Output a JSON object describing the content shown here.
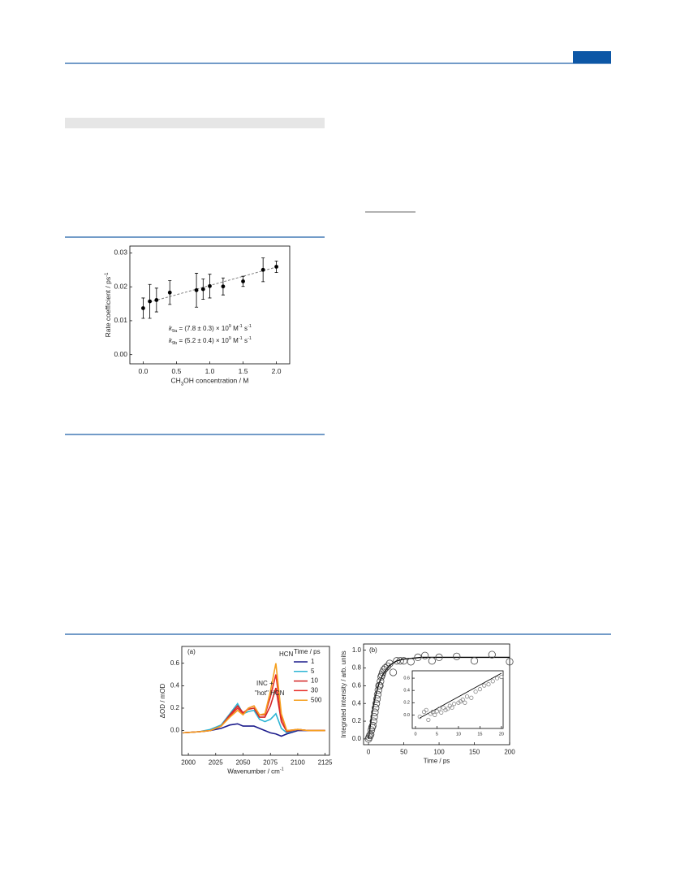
{
  "chart_data": [
    {
      "type": "scatter",
      "x": [
        0,
        0.1,
        0.2,
        0.4,
        0.8,
        0.9,
        1.0,
        1.2,
        1.5,
        1.8,
        2.0
      ],
      "values": [
        0.0137,
        0.0157,
        0.0161,
        0.0183,
        0.019,
        0.0193,
        0.0202,
        0.0201,
        0.0216,
        0.025,
        0.0259
      ],
      "errors": [
        0.003,
        0.005,
        0.0035,
        0.0035,
        0.005,
        0.003,
        0.0035,
        0.0025,
        0.0015,
        0.0035,
        0.0017
      ],
      "color": "#000000",
      "fit": {
        "x": [
          0.1,
          2.0
        ],
        "values": [
          0.0155,
          0.0258
        ],
        "color": "#808080"
      },
      "xlim": [
        -0.2,
        2.2
      ],
      "ylim": [
        -0.0027,
        0.032
      ],
      "xticks": [
        {
          "value": 0,
          "label": "0.0"
        },
        {
          "value": 0.5,
          "label": "0.5"
        },
        {
          "value": 1,
          "label": "1.0"
        },
        {
          "value": 1.5,
          "label": "1.5"
        },
        {
          "value": 2,
          "label": "2.0"
        }
      ],
      "yticks": [
        {
          "value": 0,
          "label": "0.00"
        },
        {
          "value": 0.01,
          "label": "0.01"
        },
        {
          "value": 0.02,
          "label": "0.02"
        },
        {
          "value": 0.03,
          "label": "0.03"
        }
      ],
      "xlabel": [
        {
          "text": "CH"
        },
        {
          "text": "3",
          "shift": "sub"
        },
        {
          "text": "OH concentration / M"
        }
      ],
      "ylabel": [
        {
          "text": "Rate coefficient / ps"
        },
        {
          "text": "-1",
          "shift": "super"
        }
      ],
      "annotations": [
        [
          {
            "text": "k",
            "italic": true
          },
          {
            "text": "9a",
            "shift": "sub"
          },
          {
            "text": " = (7.8 ± 0.3) × 10"
          },
          {
            "text": "9",
            "shift": "super"
          },
          {
            "text": " M"
          },
          {
            "text": "-1",
            "shift": "super"
          },
          {
            "text": " s"
          },
          {
            "text": "-1",
            "shift": "super"
          }
        ],
        [
          {
            "text": "k",
            "italic": true
          },
          {
            "text": "9b",
            "shift": "sub"
          },
          {
            "text": " = (5.2 ± 0.4) × 10"
          },
          {
            "text": "9",
            "shift": "super"
          },
          {
            "text": " M"
          },
          {
            "text": "-1",
            "shift": "super"
          },
          {
            "text": " s"
          },
          {
            "text": "-1",
            "shift": "super"
          }
        ]
      ]
    },
    {
      "type": "line",
      "x": [
        1995,
        2010,
        2020,
        2030,
        2038,
        2045,
        2050,
        2055,
        2060,
        2065,
        2070,
        2075,
        2080,
        2085,
        2090,
        2100,
        2110,
        2125
      ],
      "series": [
        {
          "name": "1",
          "color": "#1c1c8c",
          "values": [
            -0.02,
            -0.01,
            0.0,
            0.02,
            0.05,
            0.06,
            0.04,
            0.04,
            0.04,
            0.02,
            0.0,
            -0.02,
            -0.03,
            -0.05,
            -0.03,
            0.0,
            0.0,
            0.0
          ]
        },
        {
          "name": "5",
          "color": "#2cb4d4",
          "values": [
            -0.02,
            -0.01,
            0.01,
            0.05,
            0.15,
            0.24,
            0.15,
            0.17,
            0.18,
            0.1,
            0.08,
            0.1,
            0.15,
            0.02,
            -0.02,
            0.01,
            0.0,
            0.0
          ]
        },
        {
          "name": "10",
          "color": "#d42626",
          "values": [
            -0.02,
            -0.01,
            0.0,
            0.04,
            0.14,
            0.22,
            0.16,
            0.19,
            0.2,
            0.12,
            0.12,
            0.22,
            0.38,
            0.08,
            -0.01,
            0.01,
            0.0,
            0.0
          ]
        },
        {
          "name": "30",
          "color": "#e8302a",
          "values": [
            -0.02,
            -0.01,
            0.0,
            0.04,
            0.13,
            0.2,
            0.15,
            0.2,
            0.22,
            0.14,
            0.14,
            0.3,
            0.5,
            0.12,
            0.0,
            0.01,
            0.0,
            0.0
          ]
        },
        {
          "name": "500",
          "color": "#f5a020",
          "values": [
            -0.02,
            -0.01,
            0.0,
            0.04,
            0.12,
            0.18,
            0.14,
            0.2,
            0.22,
            0.14,
            0.15,
            0.35,
            0.6,
            0.15,
            0.0,
            0.01,
            0.0,
            0.0
          ]
        }
      ],
      "legend_title": "Time / ps",
      "xlim": [
        1994,
        2129
      ],
      "ylim": [
        -0.22,
        0.75
      ],
      "xticks": [
        2000,
        2025,
        2050,
        2075,
        2100,
        2125
      ],
      "yticks": [
        {
          "value": 0,
          "label": "0.0"
        },
        {
          "value": 0.2,
          "label": "0.2"
        },
        {
          "value": 0.4,
          "label": "0.4"
        },
        {
          "value": 0.6,
          "label": "0.6"
        }
      ],
      "xlabel": [
        {
          "text": "Wavenumber / cm"
        },
        {
          "text": "-1",
          "shift": "super"
        }
      ],
      "ylabel": [
        {
          "text": "ΔOD / mOD"
        }
      ],
      "annotations": [
        "(a)",
        "HCN",
        "INC +",
        "\"hot\" HCN"
      ]
    },
    {
      "type": "scatter",
      "x": [
        0,
        1,
        2,
        3,
        4,
        5,
        6,
        7,
        8,
        9,
        10,
        11,
        12,
        13,
        14,
        15,
        16,
        17,
        18,
        19,
        20,
        22,
        24,
        27,
        30,
        35,
        40,
        45,
        50,
        60,
        70,
        80,
        90,
        100,
        125,
        150,
        175,
        200
      ],
      "values": [
        0.0,
        0.02,
        0.04,
        0.05,
        0.1,
        0.13,
        0.15,
        0.2,
        0.25,
        0.3,
        0.35,
        0.4,
        0.45,
        0.5,
        0.55,
        0.6,
        0.6,
        0.65,
        0.7,
        0.72,
        0.75,
        0.78,
        0.8,
        0.82,
        0.85,
        0.75,
        0.88,
        0.88,
        0.88,
        0.87,
        0.92,
        0.94,
        0.88,
        0.92,
        0.93,
        0.88,
        0.95,
        0.87
      ],
      "color": "#444444",
      "fit": {
        "x": [
          0,
          5,
          10,
          15,
          20,
          25,
          30,
          40,
          50,
          75,
          100,
          150,
          200
        ],
        "values": [
          0,
          0.29,
          0.49,
          0.63,
          0.72,
          0.78,
          0.83,
          0.88,
          0.9,
          0.92,
          0.92,
          0.92,
          0.92
        ],
        "color": "#000000"
      },
      "xlim": [
        -7,
        200
      ],
      "ylim": [
        -0.065,
        1.07
      ],
      "xticks": [
        0,
        50,
        100,
        150,
        200
      ],
      "yticks": [
        {
          "value": 0,
          "label": "0.0"
        },
        {
          "value": 0.2,
          "label": "0.2"
        },
        {
          "value": 0.4,
          "label": "0.4"
        },
        {
          "value": 0.6,
          "label": "0.6"
        },
        {
          "value": 0.8,
          "label": "0.8"
        },
        {
          "value": 1,
          "label": "1.0"
        }
      ],
      "xlabel": [
        {
          "text": "Time / ps"
        }
      ],
      "ylabel": [
        {
          "text": "Integrated intensity / arb. units"
        }
      ],
      "annotations": [
        "(b)"
      ],
      "inset": {
        "x": [
          1,
          2,
          2.5,
          3,
          3.5,
          4,
          4.5,
          5,
          5.5,
          6,
          6.5,
          7,
          7.5,
          8,
          8.5,
          9,
          10,
          10.5,
          11,
          11.5,
          12,
          13,
          14,
          15,
          16,
          17,
          18,
          19,
          20
        ],
        "values": [
          -0.03,
          0.05,
          0.08,
          -0.08,
          0.02,
          0.05,
          0.0,
          0.06,
          0.1,
          0.04,
          0.12,
          0.08,
          0.1,
          0.15,
          0.12,
          0.18,
          0.2,
          0.22,
          0.25,
          0.2,
          0.3,
          0.28,
          0.38,
          0.42,
          0.48,
          0.5,
          0.55,
          0.6,
          0.62
        ],
        "color": "#888888",
        "fit": {
          "x": [
            1,
            20
          ],
          "values": [
            -0.05,
            0.68
          ],
          "color": "#000000"
        },
        "xlim": [
          -0.75,
          20.4
        ],
        "ylim": [
          -0.22,
          0.72
        ],
        "xticks": [
          0,
          5,
          10,
          15,
          20
        ],
        "yticks": [
          {
            "value": 0,
            "label": "0.0"
          },
          {
            "value": 0.2,
            "label": "0.2"
          },
          {
            "value": 0.4,
            "label": "0.4"
          },
          {
            "value": 0.6,
            "label": "0.6"
          }
        ]
      }
    }
  ]
}
